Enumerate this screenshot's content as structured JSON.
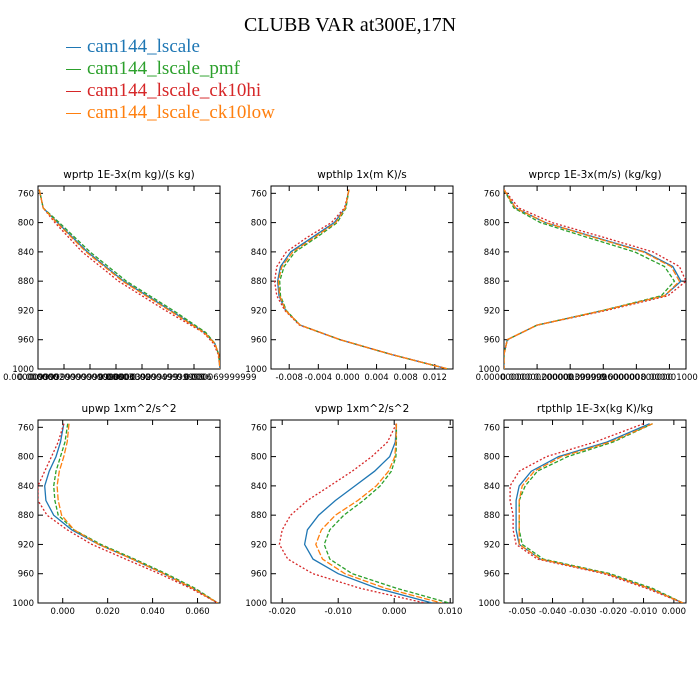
{
  "title": "CLUBB VAR at300E,17N",
  "legend": [
    {
      "name": "cam144_lscale",
      "color": "#1f77b4"
    },
    {
      "name": "cam144_lscale_pmf",
      "color": "#2ca02c"
    },
    {
      "name": "cam144_lscale_ck10hi",
      "color": "#d62728"
    },
    {
      "name": "cam144_lscale_ck10low",
      "color": "#ff7f0e"
    }
  ],
  "chart_data": [
    {
      "type": "line",
      "title": "wprtp  1E-3x(m kg)/(s kg)",
      "xlim": [
        0,
        7e-05
      ],
      "ylim": [
        1000,
        750
      ],
      "yticks": [
        760,
        800,
        840,
        880,
        920,
        960,
        1000
      ],
      "xticks": [
        {
          "v": 0,
          "label": "0.000000"
        },
        {
          "v": 1e-05,
          "label": "0.000009999999999999999"
        },
        {
          "v": 2e-05,
          "label": "0.000020000000000000002"
        },
        {
          "v": 3e-05,
          "label": "0.00003"
        },
        {
          "v": 4e-05,
          "label": "0.000039999999"
        },
        {
          "v": 5e-05,
          "label": "0.000049999999"
        },
        {
          "v": 6e-05,
          "label": "0.00006"
        },
        {
          "v": 7e-05,
          "label": "0.000069999999"
        }
      ],
      "y": [
        755,
        780,
        800,
        840,
        880,
        920,
        950,
        965,
        980,
        1000
      ],
      "series": [
        {
          "values": [
            5e-07,
            2e-06,
            7.5e-06,
            1.9e-05,
            3.3e-05,
            5.1e-05,
            6.4e-05,
            6.8e-05,
            6.95e-05,
            7e-05
          ]
        },
        {
          "values": [
            5e-07,
            2e-06,
            8.2e-06,
            2e-05,
            3.4e-05,
            5.2e-05,
            6.45e-05,
            6.8e-05,
            6.95e-05,
            7e-05
          ]
        },
        {
          "values": [
            5e-07,
            2e-06,
            6.5e-06,
            1.7e-05,
            3.1e-05,
            4.9e-05,
            6.35e-05,
            6.75e-05,
            6.93e-05,
            7e-05
          ]
        },
        {
          "values": [
            5e-07,
            2e-06,
            7.2e-06,
            1.85e-05,
            3.25e-05,
            5.05e-05,
            6.38e-05,
            6.8e-05,
            6.95e-05,
            7e-05
          ]
        }
      ]
    },
    {
      "type": "line",
      "title": "wpthlp  1x(m K)/s",
      "xlim": [
        -0.0105,
        0.0145
      ],
      "ylim": [
        1000,
        750
      ],
      "yticks": [
        760,
        800,
        840,
        880,
        920,
        960,
        1000
      ],
      "xticks": [
        {
          "v": -0.008,
          "label": "-0.008"
        },
        {
          "v": -0.004,
          "label": "-0.004"
        },
        {
          "v": 0,
          "label": "0.000"
        },
        {
          "v": 0.004,
          "label": "0.004"
        },
        {
          "v": 0.008,
          "label": "0.008"
        },
        {
          "v": 0.012,
          "label": "0.012"
        }
      ],
      "y": [
        755,
        780,
        800,
        820,
        840,
        860,
        880,
        900,
        920,
        940,
        960,
        980,
        1000
      ],
      "series": [
        {
          "values": [
            0.0002,
            -0.0003,
            -0.0018,
            -0.0048,
            -0.0078,
            -0.0092,
            -0.0096,
            -0.0094,
            -0.0085,
            -0.0065,
            -0.001,
            0.006,
            0.0138
          ]
        },
        {
          "values": [
            0.0002,
            -0.0002,
            -0.0014,
            -0.0042,
            -0.0072,
            -0.0087,
            -0.0093,
            -0.0092,
            -0.0084,
            -0.0065,
            -0.001,
            0.006,
            0.0138
          ]
        },
        {
          "values": [
            0.0002,
            -0.0004,
            -0.0022,
            -0.0055,
            -0.0084,
            -0.0097,
            -0.01,
            -0.0097,
            -0.0086,
            -0.0066,
            -0.001,
            0.006,
            0.0138
          ]
        },
        {
          "values": [
            0.0002,
            -0.0003,
            -0.0016,
            -0.0045,
            -0.0075,
            -0.009,
            -0.0095,
            -0.0093,
            -0.0085,
            -0.0065,
            -0.001,
            0.006,
            0.0138
          ]
        }
      ]
    },
    {
      "type": "line",
      "title": "wprcp  1E-3x(m/s) (kg/kg)",
      "xlim": [
        0,
        1.1e-06
      ],
      "ylim": [
        1000,
        750
      ],
      "yticks": [
        760,
        800,
        840,
        880,
        920,
        960,
        1000
      ],
      "xticks": [
        {
          "v": 0,
          "label": "0.000000000"
        },
        {
          "v": 2e-07,
          "label": "0.000000200000"
        },
        {
          "v": 4e-07,
          "label": "0.000000399999"
        },
        {
          "v": 6e-07,
          "label": "0.000000600000"
        },
        {
          "v": 8e-07,
          "label": "0.000000800000"
        },
        {
          "v": 1e-06,
          "label": "0.000001000"
        }
      ],
      "y": [
        755,
        780,
        800,
        820,
        840,
        860,
        880,
        900,
        920,
        940,
        960,
        980,
        1000
      ],
      "series": [
        {
          "values": [
            0,
            7e-08,
            2.5e-07,
            5.5e-07,
            8.5e-07,
            1.02e-06,
            1.07e-06,
            9.7e-07,
            6e-07,
            2e-07,
            2e-08,
            0,
            0
          ]
        },
        {
          "values": [
            0,
            6e-08,
            2.2e-07,
            5e-07,
            7.9e-07,
            9.7e-07,
            1.03e-06,
            9.5e-07,
            6e-07,
            2e-07,
            2e-08,
            0,
            0
          ]
        },
        {
          "values": [
            0,
            9e-08,
            2.9e-07,
            6e-07,
            9e-07,
            1.06e-06,
            1.1e-06,
            9.9e-07,
            6.2e-07,
            2e-07,
            2e-08,
            0,
            0
          ]
        },
        {
          "values": [
            0,
            7e-08,
            2.5e-07,
            5.4e-07,
            8.4e-07,
            1.01e-06,
            1.06e-06,
            9.7e-07,
            6e-07,
            2e-07,
            2e-08,
            0,
            0
          ]
        }
      ]
    },
    {
      "type": "line",
      "title": "upwp  1xm^2/s^2",
      "xlim": [
        -0.011,
        0.07
      ],
      "ylim": [
        1000,
        750
      ],
      "yticks": [
        760,
        800,
        840,
        880,
        920,
        960,
        1000
      ],
      "xticks": [
        {
          "v": 0,
          "label": "0.000"
        },
        {
          "v": 0.02,
          "label": "0.020"
        },
        {
          "v": 0.04,
          "label": "0.040"
        },
        {
          "v": 0.06,
          "label": "0.060"
        }
      ],
      "y": [
        755,
        780,
        800,
        820,
        840,
        860,
        880,
        900,
        920,
        940,
        960,
        980,
        1000
      ],
      "series": [
        {
          "values": [
            0.0005,
            -0.001,
            -0.003,
            -0.006,
            -0.008,
            -0.0075,
            -0.004,
            0.004,
            0.016,
            0.031,
            0.045,
            0.058,
            0.069
          ]
        },
        {
          "values": [
            0.0022,
            0.001,
            -0.001,
            -0.003,
            -0.004,
            -0.0035,
            -0.002,
            0.005,
            0.017,
            0.032,
            0.046,
            0.059,
            0.069
          ]
        },
        {
          "values": [
            0.0005,
            -0.002,
            -0.005,
            -0.008,
            -0.011,
            -0.011,
            -0.007,
            0.002,
            0.013,
            0.028,
            0.043,
            0.057,
            0.069
          ]
        },
        {
          "values": [
            0.0028,
            0.002,
            0.0005,
            -0.0015,
            -0.0025,
            -0.002,
            -0.0005,
            0.005,
            0.016,
            0.031,
            0.045,
            0.058,
            0.069
          ]
        }
      ]
    },
    {
      "type": "line",
      "title": "vpwp  1xm^2/s^2",
      "xlim": [
        -0.022,
        0.0105
      ],
      "ylim": [
        1000,
        750
      ],
      "yticks": [
        760,
        800,
        840,
        880,
        920,
        960,
        1000
      ],
      "xticks": [
        {
          "v": -0.02,
          "label": "-0.020"
        },
        {
          "v": -0.01,
          "label": "-0.010"
        },
        {
          "v": 0,
          "label": "0.000"
        },
        {
          "v": 0.01,
          "label": "0.010"
        }
      ],
      "y": [
        755,
        780,
        800,
        820,
        840,
        860,
        880,
        900,
        920,
        940,
        960,
        980,
        1000
      ],
      "series": [
        {
          "values": [
            0.0004,
            0.0002,
            -0.0008,
            -0.0035,
            -0.007,
            -0.0105,
            -0.0135,
            -0.0155,
            -0.016,
            -0.0145,
            -0.01,
            -0.003,
            0.0068
          ]
        },
        {
          "values": [
            0.0004,
            0.0004,
            0.0003,
            -0.0005,
            -0.0025,
            -0.0055,
            -0.009,
            -0.0115,
            -0.0125,
            -0.0115,
            -0.0075,
            0.0005,
            0.0098
          ]
        },
        {
          "values": [
            0.0004,
            -0.0012,
            -0.004,
            -0.0075,
            -0.0115,
            -0.0155,
            -0.0185,
            -0.02,
            -0.0205,
            -0.019,
            -0.0145,
            -0.006,
            0.0055
          ]
        },
        {
          "values": [
            0.0004,
            0.0003,
            0.0001,
            -0.001,
            -0.0032,
            -0.0065,
            -0.0105,
            -0.013,
            -0.014,
            -0.0128,
            -0.0088,
            -0.0015,
            0.0085
          ]
        }
      ]
    },
    {
      "type": "line",
      "title": "rtpthlp  1E-3x(kg K)/kg",
      "xlim": [
        -0.056,
        0.004
      ],
      "ylim": [
        1000,
        750
      ],
      "yticks": [
        760,
        800,
        840,
        880,
        920,
        960,
        1000
      ],
      "xticks": [
        {
          "v": -0.05,
          "label": "-0.050"
        },
        {
          "v": -0.04,
          "label": "-0.040"
        },
        {
          "v": -0.03,
          "label": "-0.030"
        },
        {
          "v": -0.02,
          "label": "-0.020"
        },
        {
          "v": -0.01,
          "label": "-0.010"
        },
        {
          "v": 0,
          "label": "0.000"
        }
      ],
      "y": [
        755,
        780,
        800,
        820,
        840,
        860,
        880,
        900,
        920,
        940,
        960,
        980,
        1000
      ],
      "series": [
        {
          "values": [
            -0.008,
            -0.022,
            -0.038,
            -0.047,
            -0.051,
            -0.052,
            -0.052,
            -0.052,
            -0.051,
            -0.044,
            -0.022,
            -0.008,
            0.003
          ]
        },
        {
          "values": [
            -0.007,
            -0.02,
            -0.035,
            -0.045,
            -0.049,
            -0.051,
            -0.051,
            -0.051,
            -0.05,
            -0.043,
            -0.021,
            -0.007,
            0.003
          ]
        },
        {
          "values": [
            -0.01,
            -0.026,
            -0.042,
            -0.051,
            -0.054,
            -0.054,
            -0.053,
            -0.053,
            -0.052,
            -0.045,
            -0.023,
            -0.009,
            0.003
          ]
        },
        {
          "values": [
            -0.007,
            -0.021,
            -0.037,
            -0.046,
            -0.05,
            -0.051,
            -0.051,
            -0.051,
            -0.051,
            -0.044,
            -0.022,
            -0.008,
            0.003
          ]
        }
      ]
    }
  ]
}
